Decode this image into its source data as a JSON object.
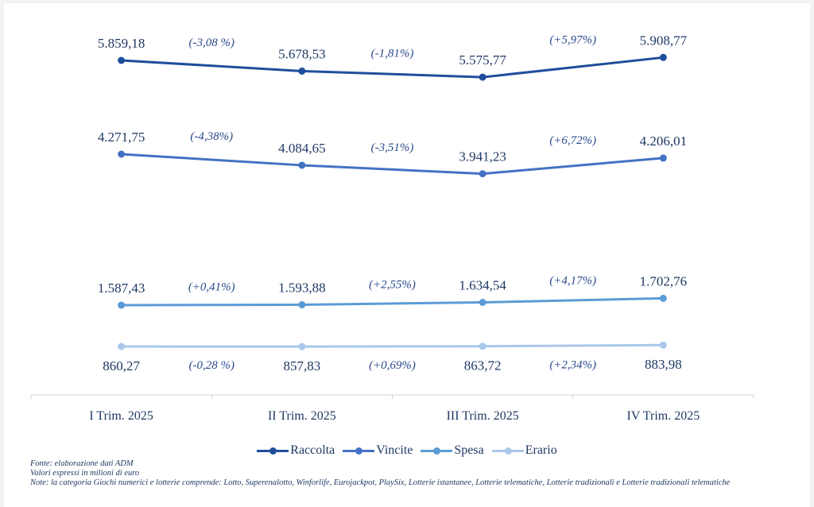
{
  "chart_data": {
    "type": "line",
    "categories": [
      "I Trim. 2025",
      "II Trim. 2025",
      "III Trim. 2025",
      "IV Trim. 2025"
    ],
    "series": [
      {
        "name": "Raccolta",
        "color": "#1f4e9c",
        "values": [
          5859.18,
          5678.53,
          5575.77,
          5908.77
        ],
        "labels": [
          "5.859,18",
          "5.678,53",
          "5.575,77",
          "5.908,77"
        ],
        "changes": [
          "(-3,08 %)",
          "(-1,81%)",
          "(+5,97%)"
        ]
      },
      {
        "name": "Vincite",
        "color": "#4472c4",
        "values": [
          4271.75,
          4084.65,
          3941.23,
          4206.01
        ],
        "labels": [
          "4.271,75",
          "4.084,65",
          "3.941,23",
          "4.206,01"
        ],
        "changes": [
          "(-4,38%)",
          "(-3,51%)",
          "(+6,72%)"
        ]
      },
      {
        "name": "Spesa",
        "color": "#5b9bd5",
        "values": [
          1587.43,
          1593.88,
          1634.54,
          1702.76
        ],
        "labels": [
          "1.587,43",
          "1.593,88",
          "1.634,54",
          "1.702,76"
        ],
        "changes": [
          "(+0,41%)",
          "(+2,55%)",
          "(+4,17%)"
        ]
      },
      {
        "name": "Erario",
        "color": "#a9c8eb",
        "values": [
          860.27,
          857.83,
          863.72,
          883.98
        ],
        "labels": [
          "860,27",
          "857,83",
          "863,72",
          "883,98"
        ],
        "changes": [
          "(-0,28 %)",
          "(+0,69%)",
          "(+2,34%)"
        ]
      }
    ],
    "legend_position": "bottom",
    "grid": false
  },
  "notes": {
    "source": "Fonte: elaborazione dati ADM",
    "units": "Valori espressi in milioni di euro",
    "note": "Note: la categoria Giochi numerici e lotterie comprende: Lotto, Superenalotto, Winforlife, Eurojackpot, PlaySix, Lotterie istantanee, Lotterie telematiche, Lotterie tradizionali e Lotterie tradizionali telematiche"
  }
}
